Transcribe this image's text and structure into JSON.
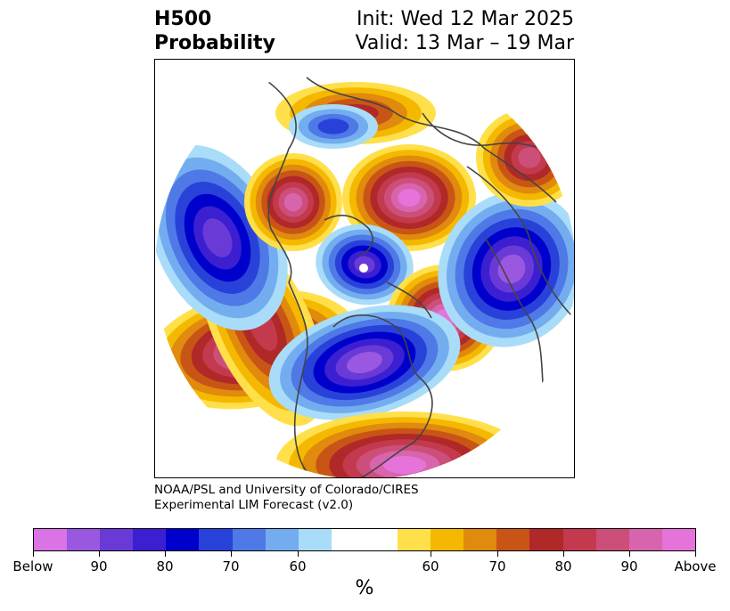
{
  "title": {
    "left_line1": "H500",
    "left_line2": "Probability",
    "right_line1": "Init: Wed 12 Mar 2025",
    "right_line2": "Valid: 13 Mar – 19 Mar"
  },
  "credit": {
    "line1": "NOAA/PSL and University of Colorado/CIRES",
    "line2": "Experimental LIM Forecast (v2.0)"
  },
  "colorbar": {
    "units": "%",
    "swatches": [
      "#d973e6",
      "#9a57e0",
      "#6a3ad6",
      "#3b1fd1",
      "#0000cc",
      "#2842d9",
      "#4f79e6",
      "#73adf0",
      "#a9dcf8",
      "#ffffff",
      "#ffffff",
      "#ffe04a",
      "#f5b800",
      "#e08a0e",
      "#c85516",
      "#b02828",
      "#c33a4e",
      "#cc4f7a",
      "#d964ae",
      "#e673d9"
    ],
    "ticks": [
      {
        "label": "Below"
      },
      {
        "label": "90"
      },
      {
        "label": "80"
      },
      {
        "label": "70"
      },
      {
        "label": "60"
      },
      {
        "label": "60"
      },
      {
        "label": "70"
      },
      {
        "label": "80"
      },
      {
        "label": "90"
      },
      {
        "label": "Above"
      }
    ]
  },
  "map": {
    "projection": "north-polar-stereographic",
    "levels_below": [
      "#a9dcf8",
      "#73adf0",
      "#4f79e6",
      "#2842d9",
      "#0000cc",
      "#3b1fd1",
      "#6a3ad6",
      "#9a57e0"
    ],
    "levels_above": [
      "#ffe04a",
      "#f5b800",
      "#e08a0e",
      "#c85516",
      "#b02828",
      "#c33a4e",
      "#cc4f7a",
      "#d964ae",
      "#e673d9"
    ],
    "coastline_color": "#444444"
  }
}
